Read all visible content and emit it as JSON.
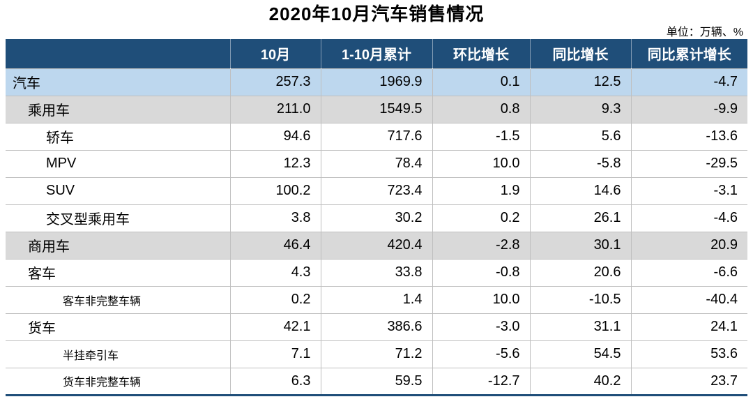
{
  "title": "2020年10月汽车销售情况",
  "unit_label": "单位：万辆、%",
  "colors": {
    "header_bg": "#1f4e79",
    "header_text": "#ffffff",
    "total_row_bg": "#bdd7ee",
    "group_row_bg": "#d9d9d9",
    "grid_line": "#bfbfbf",
    "bottom_rule": "#1f4e79"
  },
  "table": {
    "columns": [
      "",
      "10月",
      "1-10月累计",
      "环比增长",
      "同比增长",
      "同比累计增长"
    ],
    "rows": [
      {
        "label": "汽车",
        "indent": 0,
        "style": "blue",
        "small": false,
        "values": [
          "257.3",
          "1969.9",
          "0.1",
          "12.5",
          "-4.7"
        ]
      },
      {
        "label": "乘用车",
        "indent": 1,
        "style": "gray",
        "small": false,
        "values": [
          "211.0",
          "1549.5",
          "0.8",
          "9.3",
          "-9.9"
        ]
      },
      {
        "label": "轿车",
        "indent": 2,
        "style": "white",
        "small": false,
        "values": [
          "94.6",
          "717.6",
          "-1.5",
          "5.6",
          "-13.6"
        ]
      },
      {
        "label": "MPV",
        "indent": 2,
        "style": "white",
        "small": false,
        "values": [
          "12.3",
          "78.4",
          "10.0",
          "-5.8",
          "-29.5"
        ]
      },
      {
        "label": "SUV",
        "indent": 2,
        "style": "white",
        "small": false,
        "values": [
          "100.2",
          "723.4",
          "1.9",
          "14.6",
          "-3.1"
        ]
      },
      {
        "label": "交叉型乘用车",
        "indent": 2,
        "style": "white",
        "small": false,
        "values": [
          "3.8",
          "30.2",
          "0.2",
          "26.1",
          "-4.6"
        ]
      },
      {
        "label": "商用车",
        "indent": 1,
        "style": "gray",
        "small": false,
        "values": [
          "46.4",
          "420.4",
          "-2.8",
          "30.1",
          "20.9"
        ]
      },
      {
        "label": "客车",
        "indent": 1,
        "style": "white",
        "small": false,
        "values": [
          "4.3",
          "33.8",
          "-0.8",
          "20.6",
          "-6.6"
        ]
      },
      {
        "label": "客车非完整车辆",
        "indent": 3,
        "style": "white",
        "small": true,
        "values": [
          "0.2",
          "1.4",
          "10.0",
          "-10.5",
          "-40.4"
        ]
      },
      {
        "label": "货车",
        "indent": 1,
        "style": "white",
        "small": false,
        "values": [
          "42.1",
          "386.6",
          "-3.0",
          "31.1",
          "24.1"
        ]
      },
      {
        "label": "半挂牵引车",
        "indent": 3,
        "style": "white",
        "small": true,
        "values": [
          "7.1",
          "71.2",
          "-5.6",
          "54.5",
          "53.6"
        ]
      },
      {
        "label": "货车非完整车辆",
        "indent": 3,
        "style": "white",
        "small": true,
        "values": [
          "6.3",
          "59.5",
          "-12.7",
          "40.2",
          "23.7"
        ]
      }
    ]
  },
  "chart_data": {
    "type": "table",
    "title": "2020年10月汽车销售情况",
    "unit": "万辆、%",
    "columns": [
      "10月",
      "1-10月累计",
      "环比增长",
      "同比增长",
      "同比累计增长"
    ],
    "rows": [
      {
        "category": "汽车",
        "values": [
          257.3,
          1969.9,
          0.1,
          12.5,
          -4.7
        ]
      },
      {
        "category": "乘用车",
        "values": [
          211.0,
          1549.5,
          0.8,
          9.3,
          -9.9
        ]
      },
      {
        "category": "轿车",
        "values": [
          94.6,
          717.6,
          -1.5,
          5.6,
          -13.6
        ]
      },
      {
        "category": "MPV",
        "values": [
          12.3,
          78.4,
          10.0,
          -5.8,
          -29.5
        ]
      },
      {
        "category": "SUV",
        "values": [
          100.2,
          723.4,
          1.9,
          14.6,
          -3.1
        ]
      },
      {
        "category": "交叉型乘用车",
        "values": [
          3.8,
          30.2,
          0.2,
          26.1,
          -4.6
        ]
      },
      {
        "category": "商用车",
        "values": [
          46.4,
          420.4,
          -2.8,
          30.1,
          20.9
        ]
      },
      {
        "category": "客车",
        "values": [
          4.3,
          33.8,
          -0.8,
          20.6,
          -6.6
        ]
      },
      {
        "category": "客车非完整车辆",
        "values": [
          0.2,
          1.4,
          10.0,
          -10.5,
          -40.4
        ]
      },
      {
        "category": "货车",
        "values": [
          42.1,
          386.6,
          -3.0,
          31.1,
          24.1
        ]
      },
      {
        "category": "半挂牵引车",
        "values": [
          7.1,
          71.2,
          -5.6,
          54.5,
          53.6
        ]
      },
      {
        "category": "货车非完整车辆",
        "values": [
          6.3,
          59.5,
          -12.7,
          40.2,
          23.7
        ]
      }
    ]
  }
}
